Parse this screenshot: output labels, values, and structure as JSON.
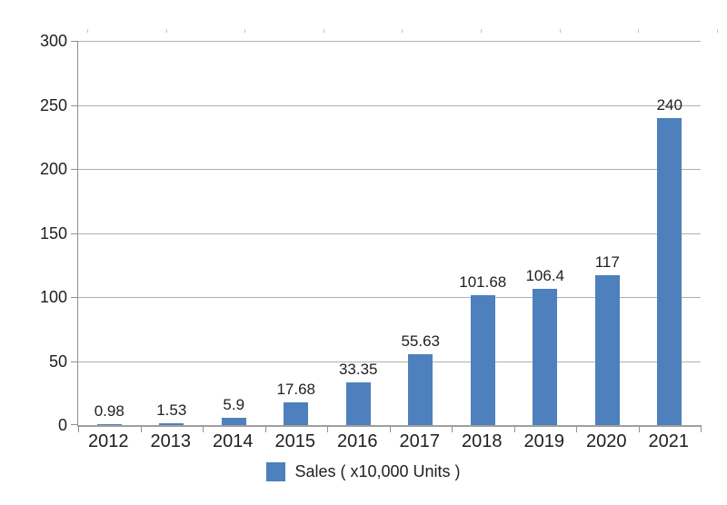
{
  "chart_data": {
    "type": "bar",
    "title": "",
    "categories": [
      "2012",
      "2013",
      "2014",
      "2015",
      "2016",
      "2017",
      "2018",
      "2019",
      "2020",
      "2021"
    ],
    "series": [
      {
        "name": "Sales ( x10,000 Units )",
        "values": [
          0.98,
          1.53,
          5.9,
          17.68,
          33.35,
          55.63,
          101.68,
          106.4,
          117,
          240
        ]
      }
    ],
    "data_labels": [
      "0.98",
      "1.53",
      "5.9",
      "17.68",
      "33.35",
      "55.63",
      "101.68",
      "106.4",
      "117",
      "240"
    ],
    "xlabel": "",
    "ylabel": "",
    "ylim": [
      0,
      300
    ],
    "y_ticks": [
      0,
      50,
      100,
      150,
      200,
      250,
      300
    ],
    "grid": true,
    "legend_position": "bottom",
    "legend_label": "Sales ( x10,000 Units )",
    "colors": {
      "bar": "#4d80bd",
      "gridline": "#b0b0b0",
      "axis": "#8f8f8f",
      "text": "#1f1f1f",
      "background": "#ffffff"
    }
  }
}
